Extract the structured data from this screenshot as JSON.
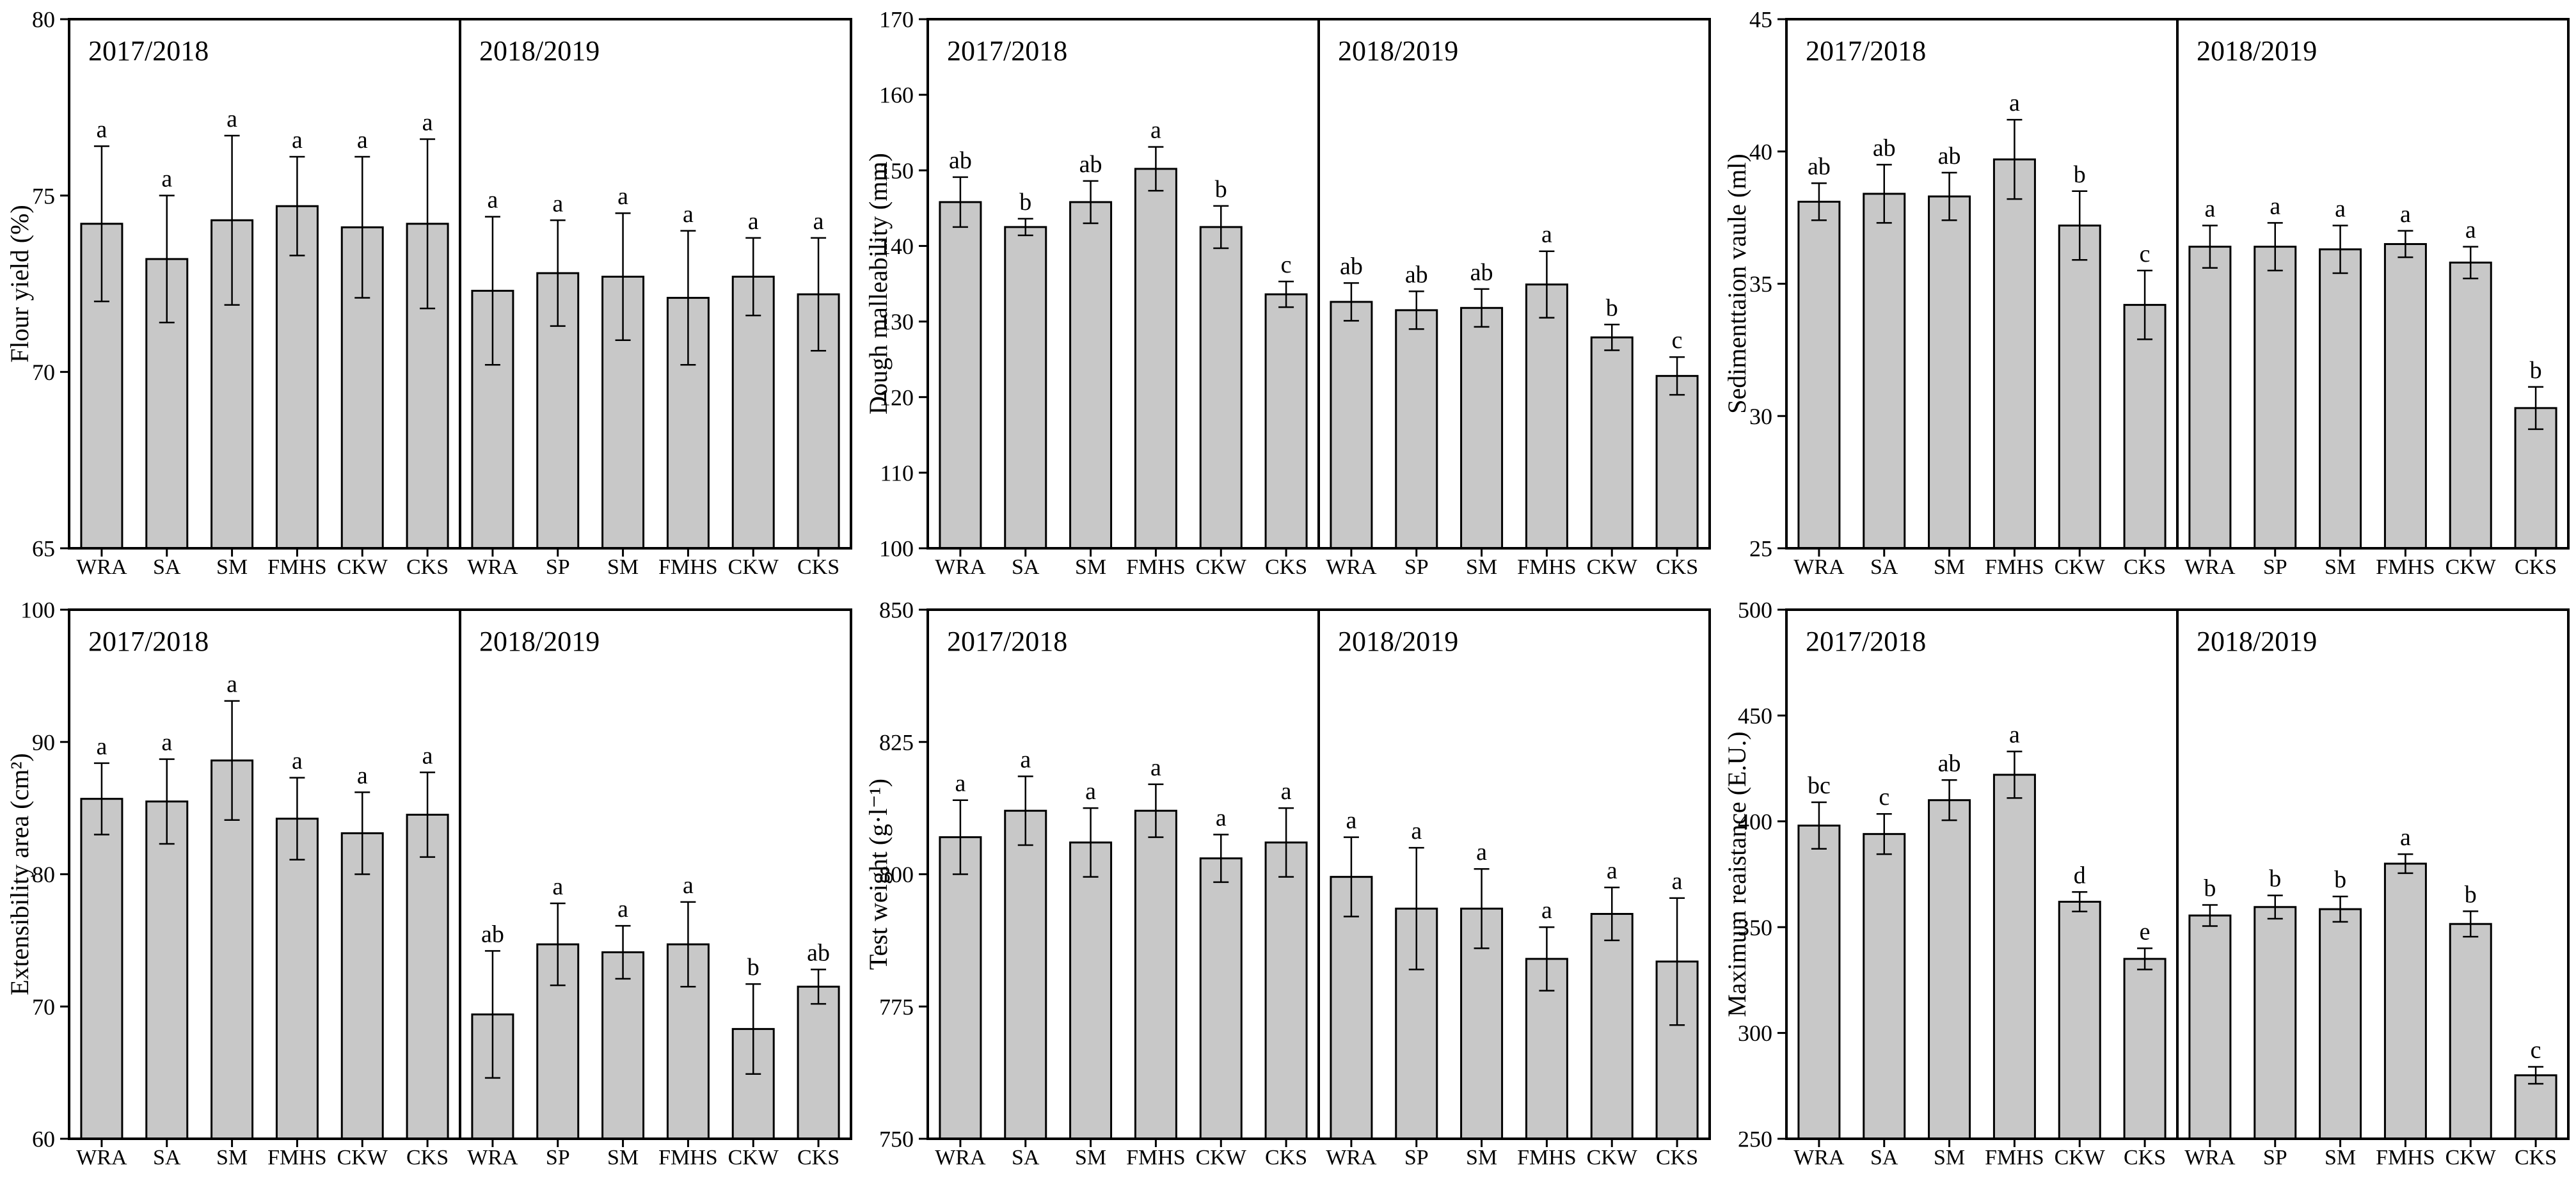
{
  "figure": {
    "background": "#ffffff",
    "bar_fill": "#c8c8c8",
    "line_color": "#000000"
  },
  "chart_data": [
    {
      "type": "bar",
      "ylabel": "Flour yield (%)",
      "ylim": [
        65,
        80
      ],
      "yticks": [
        65,
        70,
        75,
        80
      ],
      "panels": [
        {
          "label": "2017/2018",
          "categories": [
            "WRA",
            "SA",
            "SM",
            "FMHS",
            "CKW",
            "CKS"
          ],
          "values": [
            74.2,
            73.2,
            74.3,
            74.7,
            74.1,
            74.2
          ],
          "errors": [
            2.2,
            1.8,
            2.4,
            1.4,
            2.0,
            2.4
          ],
          "letters": [
            "a",
            "a",
            "a",
            "a",
            "a",
            "a"
          ]
        },
        {
          "label": "2018/2019",
          "categories": [
            "WRA",
            "SP",
            "SM",
            "FMHS",
            "CKW",
            "CKS"
          ],
          "values": [
            72.3,
            72.8,
            72.7,
            72.1,
            72.7,
            72.2
          ],
          "errors": [
            2.1,
            1.5,
            1.8,
            1.9,
            1.1,
            1.6
          ],
          "letters": [
            "a",
            "a",
            "a",
            "a",
            "a",
            "a"
          ]
        }
      ]
    },
    {
      "type": "bar",
      "ylabel": "Dough malleability (mm)",
      "ylim": [
        100,
        170
      ],
      "yticks": [
        100,
        110,
        120,
        130,
        140,
        150,
        160,
        170
      ],
      "panels": [
        {
          "label": "2017/2018",
          "categories": [
            "WRA",
            "SA",
            "SM",
            "FMHS",
            "CKW",
            "CKS"
          ],
          "values": [
            145.8,
            142.5,
            145.8,
            150.2,
            142.5,
            133.6
          ],
          "errors": [
            3.3,
            1.1,
            2.8,
            2.9,
            2.8,
            1.7
          ],
          "letters": [
            "ab",
            "b",
            "ab",
            "a",
            "b",
            "c"
          ]
        },
        {
          "label": "2018/2019",
          "categories": [
            "WRA",
            "SP",
            "SM",
            "FMHS",
            "CKW",
            "CKS"
          ],
          "values": [
            132.6,
            131.5,
            131.8,
            134.9,
            127.9,
            122.8
          ],
          "errors": [
            2.5,
            2.5,
            2.5,
            4.4,
            1.7,
            2.5
          ],
          "letters": [
            "ab",
            "ab",
            "ab",
            "a",
            "b",
            "c"
          ]
        }
      ]
    },
    {
      "type": "bar",
      "ylabel": "Sedimenttaion vaule (ml)",
      "ylim": [
        25,
        45
      ],
      "yticks": [
        25,
        30,
        35,
        40,
        45
      ],
      "panels": [
        {
          "label": "2017/2018",
          "categories": [
            "WRA",
            "SA",
            "SM",
            "FMHS",
            "CKW",
            "CKS"
          ],
          "values": [
            38.1,
            38.4,
            38.3,
            39.7,
            37.2,
            34.2
          ],
          "errors": [
            0.7,
            1.1,
            0.9,
            1.5,
            1.3,
            1.3
          ],
          "letters": [
            "ab",
            "ab",
            "ab",
            "a",
            "b",
            "c"
          ]
        },
        {
          "label": "2018/2019",
          "categories": [
            "WRA",
            "SP",
            "SM",
            "FMHS",
            "CKW",
            "CKS"
          ],
          "values": [
            36.4,
            36.4,
            36.3,
            36.5,
            35.8,
            30.3
          ],
          "errors": [
            0.8,
            0.9,
            0.9,
            0.5,
            0.6,
            0.8
          ],
          "letters": [
            "a",
            "a",
            "a",
            "a",
            "a",
            "b"
          ]
        }
      ]
    },
    {
      "type": "bar",
      "ylabel": "Extensibility area (cm²)",
      "ylim": [
        60,
        100
      ],
      "yticks": [
        60,
        70,
        80,
        90,
        100
      ],
      "panels": [
        {
          "label": "2017/2018",
          "categories": [
            "WRA",
            "SA",
            "SM",
            "FMHS",
            "CKW",
            "CKS"
          ],
          "values": [
            85.7,
            85.5,
            88.6,
            84.2,
            83.1,
            84.5
          ],
          "errors": [
            2.7,
            3.2,
            4.5,
            3.1,
            3.1,
            3.2
          ],
          "letters": [
            "a",
            "a",
            "a",
            "a",
            "a",
            "a"
          ]
        },
        {
          "label": "2018/2019",
          "categories": [
            "WRA",
            "SP",
            "SM",
            "FMHS",
            "CKW",
            "CKS"
          ],
          "values": [
            69.4,
            74.7,
            74.1,
            74.7,
            68.3,
            71.5
          ],
          "errors": [
            4.8,
            3.1,
            2.0,
            3.2,
            3.4,
            1.3
          ],
          "letters": [
            "ab",
            "a",
            "a",
            "a",
            "b",
            "ab"
          ]
        }
      ]
    },
    {
      "type": "bar",
      "ylabel": "Test weight (g·l⁻¹)",
      "ylim": [
        750,
        850
      ],
      "yticks": [
        750,
        775,
        800,
        825,
        850
      ],
      "panels": [
        {
          "label": "2017/2018",
          "categories": [
            "WRA",
            "SA",
            "SM",
            "FMHS",
            "CKW",
            "CKS"
          ],
          "values": [
            807,
            812,
            806,
            812,
            803,
            806
          ],
          "errors": [
            7,
            6.5,
            6.5,
            5,
            4.5,
            6.5
          ],
          "letters": [
            "a",
            "a",
            "a",
            "a",
            "a",
            "a"
          ]
        },
        {
          "label": "2018/2019",
          "categories": [
            "WRA",
            "SP",
            "SM",
            "FMHS",
            "CKW",
            "CKS"
          ],
          "values": [
            799.5,
            793.5,
            793.5,
            784,
            792.5,
            783.5
          ],
          "errors": [
            7.5,
            11.5,
            7.5,
            6,
            5,
            12
          ],
          "letters": [
            "a",
            "a",
            "a",
            "a",
            "a",
            "a"
          ]
        }
      ]
    },
    {
      "type": "bar",
      "ylabel": "Maximum reaistance (E.U.)",
      "ylim": [
        250,
        500
      ],
      "yticks": [
        250,
        300,
        350,
        400,
        450,
        500
      ],
      "panels": [
        {
          "label": "2017/2018",
          "categories": [
            "WRA",
            "SA",
            "SM",
            "FMHS",
            "CKW",
            "CKS"
          ],
          "values": [
            398,
            394,
            410,
            422,
            362,
            335
          ],
          "errors": [
            11,
            9.5,
            9.5,
            11,
            4.6,
            5
          ],
          "letters": [
            "bc",
            "c",
            "ab",
            "a",
            "d",
            "e"
          ]
        },
        {
          "label": "2018/2019",
          "categories": [
            "WRA",
            "SP",
            "SM",
            "FMHS",
            "CKW",
            "CKS"
          ],
          "values": [
            355.5,
            359.5,
            358.5,
            380,
            351.5,
            280
          ],
          "errors": [
            5,
            5.5,
            6,
            4.5,
            6,
            4
          ],
          "letters": [
            "b",
            "b",
            "b",
            "a",
            "b",
            "c"
          ]
        }
      ]
    }
  ]
}
